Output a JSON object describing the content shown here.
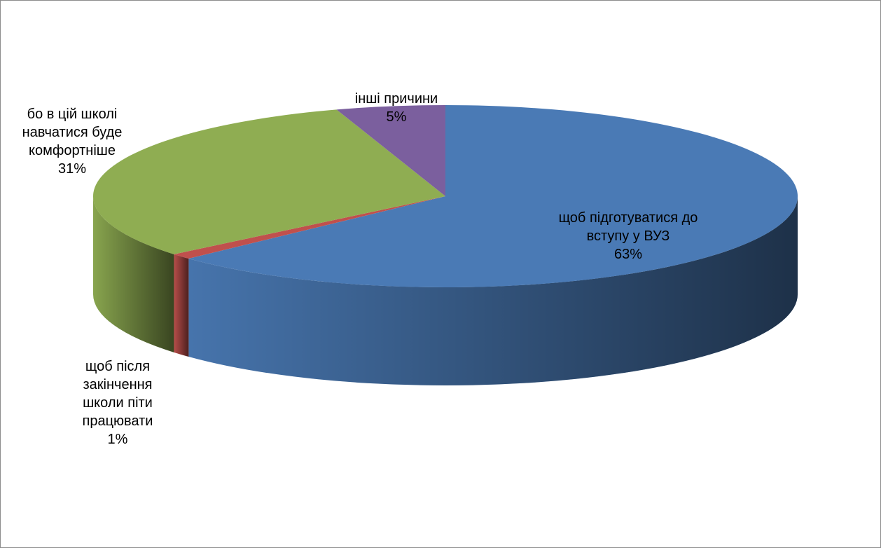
{
  "chart_data": {
    "type": "pie3d",
    "categories": [
      "щоб підготуватися до вступу у ВУЗ",
      "щоб після закінчення школи піти працювати",
      "бо в цій школі навчатися буде комфортніше",
      "інші причини"
    ],
    "values": [
      63,
      1,
      31,
      5
    ],
    "value_labels": [
      "63%",
      "1%",
      "31%",
      "5%"
    ],
    "colors": [
      "#4a7ab5",
      "#c0504d",
      "#8fad52",
      "#7b5f9e"
    ]
  }
}
